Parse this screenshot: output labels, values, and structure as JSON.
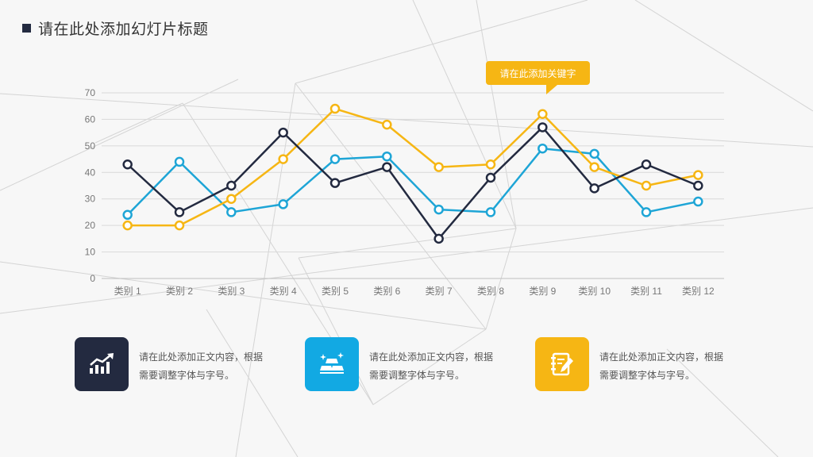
{
  "slide": {
    "title": "请在此处添加幻灯片标题",
    "callout": "请在此添加关键字"
  },
  "colors": {
    "navy": "#232a40",
    "cyan": "#1ea5d6",
    "yellow": "#f6b614",
    "grid": "#d9d9d9",
    "axis_text": "#777777"
  },
  "chart_data": {
    "type": "line",
    "categories": [
      "类别 1",
      "类别 2",
      "类别 3",
      "类别 4",
      "类别 5",
      "类别 6",
      "类别 7",
      "类别 8",
      "类别 9",
      "类别 10",
      "类别 11",
      "类别 12"
    ],
    "ylim": [
      0,
      70
    ],
    "yticks": [
      0,
      10,
      20,
      30,
      40,
      50,
      60,
      70
    ],
    "grid": true,
    "series": [
      {
        "color": "#1ea5d6",
        "values": [
          24,
          44,
          25,
          28,
          45,
          46,
          26,
          25,
          49,
          47,
          25,
          29
        ]
      },
      {
        "color": "#f6b614",
        "values": [
          20,
          20,
          30,
          45,
          64,
          58,
          42,
          43,
          62,
          42,
          35,
          39
        ]
      },
      {
        "color": "#232a40",
        "values": [
          43,
          25,
          35,
          55,
          36,
          42,
          15,
          38,
          57,
          34,
          43,
          35
        ]
      }
    ]
  },
  "cards": [
    {
      "icon": "trend-chart-icon",
      "color": "#232a40",
      "line1": "请在此处添加正文内容，根据",
      "line2": "需要调整字体与字号。"
    },
    {
      "icon": "gold-bars-icon",
      "color": "#12a9e3",
      "line1": "请在此处添加正文内容，根据",
      "line2": "需要调整字体与字号。"
    },
    {
      "icon": "notebook-pen-icon",
      "color": "#f6b614",
      "line1": "请在此处添加正文内容，根据",
      "line2": "需要调整字体与字号。"
    }
  ]
}
